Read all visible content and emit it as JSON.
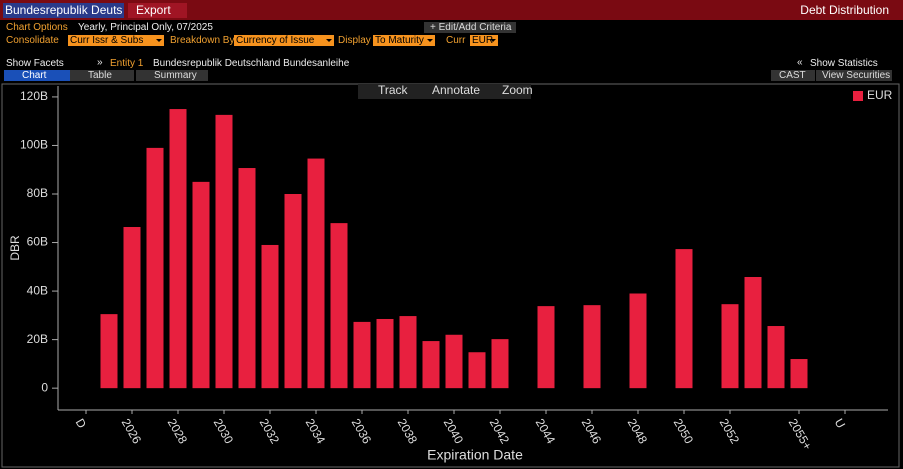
{
  "header": {
    "security": "Bundesrepublik Deuts",
    "export": "Export",
    "function_title": "Debt Distribution"
  },
  "options": {
    "chart_options_label": "Chart Options",
    "chart_options_value": "Yearly, Principal Only, 07/2025",
    "edit_button": "+ Edit/Add Criteria",
    "consolidate_label": "Consolidate",
    "consolidate_value": "Curr Issr & Subs",
    "breakdown_label": "Breakdown By",
    "breakdown_value": "Currency of Issue",
    "display_label": "Display",
    "display_value": "To Maturity",
    "curr_label": "Curr",
    "curr_value": "EUR"
  },
  "facets": {
    "show_facets": "Show Facets",
    "facets_arrow": "»",
    "entity_label": "Entity 1",
    "entity_name": "Bundesrepublik Deutschland Bundesanleihe",
    "stats_arrow": "«",
    "show_statistics": "Show Statistics"
  },
  "tabs": {
    "chart": "Chart",
    "table": "Table",
    "summary": "Summary",
    "cast": "CAST",
    "view_securities": "View Securities"
  },
  "tools": {
    "track": "Track",
    "annotate": "Annotate",
    "zoom": "Zoom"
  },
  "chart_data": {
    "type": "bar",
    "y_label": "DBR",
    "x_label": "Expiration Date",
    "categories": [
      "D",
      null,
      "2026",
      null,
      "2028",
      null,
      "2030",
      null,
      "2032",
      null,
      "2034",
      null,
      "2036",
      null,
      "2038",
      null,
      "2040",
      null,
      "2042",
      null,
      "2044",
      null,
      "2046",
      null,
      "2048",
      null,
      "2050",
      null,
      "2052",
      null,
      null,
      "2055+",
      null,
      "U"
    ],
    "series": [
      {
        "name": "EUR",
        "color": "#e8203f",
        "values": [
          null,
          30.5,
          66.4,
          99,
          115,
          85,
          112.6,
          90.7,
          59,
          80,
          94.6,
          68,
          27.3,
          28.5,
          29.7,
          19.4,
          22,
          14.8,
          20.2,
          null,
          33.8,
          null,
          34.2,
          null,
          39,
          null,
          57.3,
          null,
          34.6,
          45.8,
          25.6,
          12,
          null,
          null
        ]
      }
    ],
    "ylim": [
      -9,
      124.5
    ],
    "yticks": [
      0,
      {
        "value": 20,
        "label": "20B"
      },
      {
        "value": 40,
        "label": "40B"
      },
      {
        "value": 60,
        "label": "60B"
      },
      {
        "value": 80,
        "label": "80B"
      },
      {
        "value": 100,
        "label": "100B"
      },
      {
        "value": 120,
        "label": "120B"
      }
    ],
    "grid": false,
    "legend": "upper right"
  }
}
